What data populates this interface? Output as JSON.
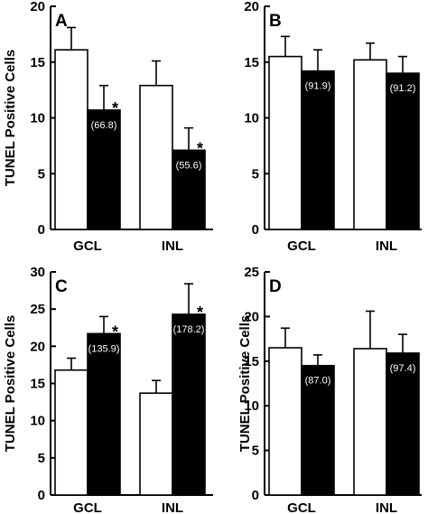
{
  "chart_data": [
    {
      "panel": "A",
      "type": "bar",
      "ylabel": "TUNEL Positive Cells",
      "ylim": [
        0,
        20
      ],
      "yticks": [
        0,
        5,
        10,
        15,
        20
      ],
      "categories": [
        "GCL",
        "INL"
      ],
      "series": [
        {
          "fill": "white",
          "values": [
            16.1,
            12.9
          ],
          "errors": [
            2.0,
            2.2
          ]
        },
        {
          "fill": "black",
          "values": [
            10.7,
            7.1
          ],
          "errors": [
            2.2,
            2.0
          ],
          "data_labels": [
            "(66.8)",
            "(55.6)"
          ],
          "significance": [
            "*",
            "*"
          ]
        }
      ]
    },
    {
      "panel": "B",
      "type": "bar",
      "ylabel": "",
      "ylim": [
        0,
        20
      ],
      "yticks": [
        0,
        5,
        10,
        15,
        20
      ],
      "categories": [
        "GCL",
        "INL"
      ],
      "series": [
        {
          "fill": "white",
          "values": [
            15.5,
            15.2
          ],
          "errors": [
            1.8,
            1.5
          ]
        },
        {
          "fill": "black",
          "values": [
            14.2,
            14.0
          ],
          "errors": [
            1.9,
            1.5
          ],
          "data_labels": [
            "(91.9)",
            "(91.2)"
          ],
          "significance": [
            "",
            ""
          ]
        }
      ]
    },
    {
      "panel": "C",
      "type": "bar",
      "ylabel": "TUNEL Positive Cells",
      "ylim": [
        0,
        30
      ],
      "yticks": [
        0,
        5,
        10,
        15,
        20,
        25,
        30
      ],
      "categories": [
        "GCL",
        "INL"
      ],
      "series": [
        {
          "fill": "white",
          "values": [
            16.8,
            13.7
          ],
          "errors": [
            1.6,
            1.7
          ]
        },
        {
          "fill": "black",
          "values": [
            21.7,
            24.3
          ],
          "errors": [
            2.3,
            4.1
          ],
          "data_labels": [
            "(135.9)",
            "(178.2)"
          ],
          "significance": [
            "*",
            "*"
          ]
        }
      ]
    },
    {
      "panel": "D",
      "type": "bar",
      "ylabel": "TUNEL Positive Cells",
      "ylim": [
        0,
        25
      ],
      "yticks": [
        0,
        5,
        10,
        15,
        20,
        25
      ],
      "categories": [
        "GCL",
        "INL"
      ],
      "series": [
        {
          "fill": "white",
          "values": [
            16.5,
            16.4
          ],
          "errors": [
            2.2,
            4.2
          ]
        },
        {
          "fill": "black",
          "values": [
            14.5,
            15.9
          ],
          "errors": [
            1.2,
            2.1
          ],
          "data_labels": [
            "(87.0)",
            "(97.4)"
          ],
          "significance": [
            "",
            ""
          ]
        }
      ]
    }
  ]
}
